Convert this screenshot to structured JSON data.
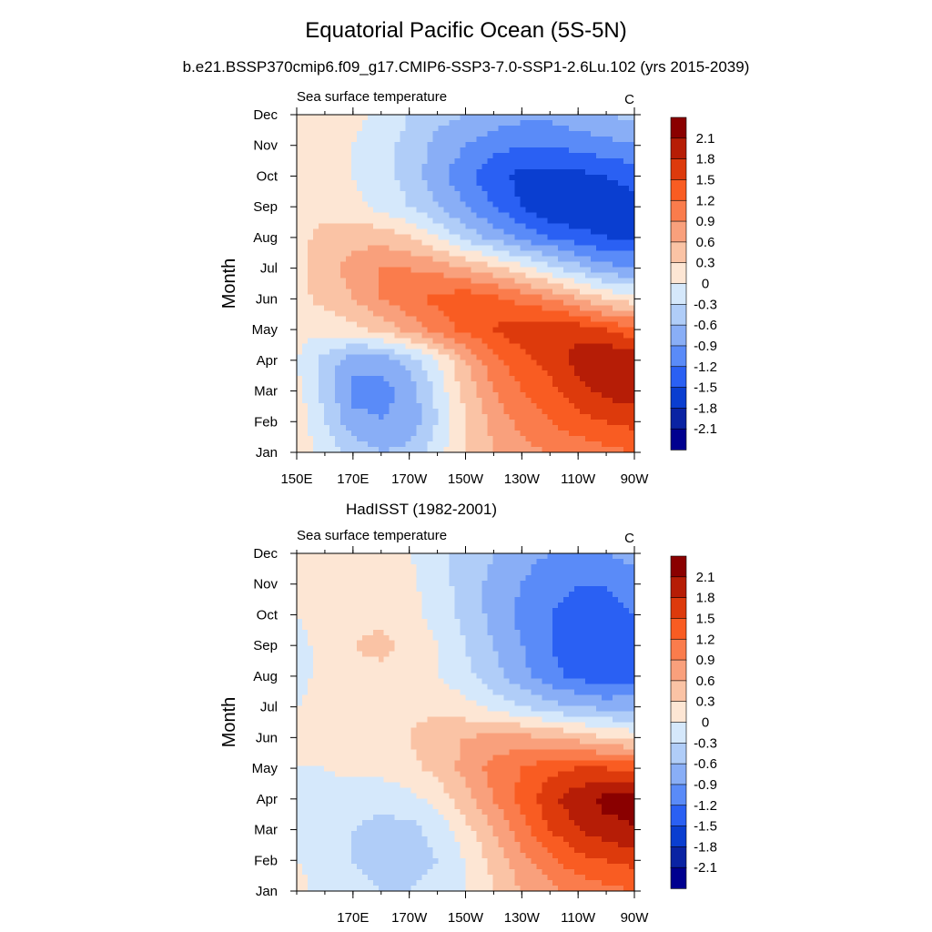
{
  "title": "Equatorial Pacific Ocean (5S-5N)",
  "subtitle": "b.e21.BSSP370cmip6.f09_g17.CMIP6-SSP3-7.0-SSP1-2.6Lu.102 (yrs 2015-2039)",
  "colorbar": {
    "labels": [
      "2.1",
      "1.8",
      "1.5",
      "1.2",
      "0.9",
      "0.6",
      "0.3",
      "0",
      "-0.3",
      "-0.6",
      "-0.9",
      "-1.2",
      "-1.5",
      "-1.8",
      "-2.1"
    ],
    "colors": [
      "#8a0000",
      "#b61d06",
      "#dd3a0c",
      "#f95c22",
      "#fa7c4c",
      "#f9a07c",
      "#fac3a5",
      "#fde6d4",
      "#d5e8fb",
      "#b0cdf8",
      "#89aef6",
      "#5a8bf8",
      "#2a60f3",
      "#0a3ed0",
      "#0a23a3",
      "#00008f"
    ]
  },
  "chart_data": [
    {
      "type": "heatmap",
      "panel_title": "",
      "left_label": "Sea surface temperature",
      "right_label": "C",
      "ylabel": "Month",
      "xlabel": "",
      "x_ticks": [
        "150E",
        "170E",
        "170W",
        "150W",
        "130W",
        "110W",
        "90W"
      ],
      "x_tick_lon": [
        150,
        170,
        190,
        210,
        230,
        250,
        270
      ],
      "y_ticks": [
        "Jan",
        "Feb",
        "Mar",
        "Apr",
        "May",
        "Jun",
        "Jul",
        "Aug",
        "Sep",
        "Oct",
        "Nov",
        "Dec"
      ],
      "xlim": [
        150,
        270
      ],
      "lon": [
        150,
        160,
        170,
        180,
        190,
        200,
        210,
        220,
        230,
        240,
        250,
        260,
        270
      ],
      "values": [
        [
          0.2,
          -0.1,
          -0.4,
          -0.6,
          -0.5,
          -0.1,
          0.3,
          0.6,
          0.8,
          0.9,
          1.0,
          1.1,
          1.2
        ],
        [
          0.2,
          -0.3,
          -0.8,
          -0.9,
          -0.8,
          -0.3,
          0.3,
          0.7,
          1.0,
          1.2,
          1.4,
          1.5,
          1.6
        ],
        [
          0.1,
          -0.4,
          -1.0,
          -1.0,
          -0.8,
          -0.2,
          0.4,
          0.9,
          1.2,
          1.4,
          1.7,
          1.9,
          2.0
        ],
        [
          0.0,
          -0.4,
          -0.8,
          -0.8,
          -0.5,
          0.0,
          0.6,
          1.1,
          1.4,
          1.6,
          1.9,
          2.1,
          2.1
        ],
        [
          0.1,
          0.1,
          0.2,
          0.4,
          0.7,
          1.0,
          1.3,
          1.5,
          1.7,
          1.8,
          1.7,
          1.5,
          1.3
        ],
        [
          0.2,
          0.4,
          0.6,
          0.9,
          1.1,
          1.3,
          1.4,
          1.3,
          1.1,
          0.9,
          0.6,
          0.3,
          0.1
        ],
        [
          0.2,
          0.5,
          0.7,
          0.9,
          0.9,
          0.8,
          0.6,
          0.4,
          0.1,
          -0.2,
          -0.5,
          -0.8,
          -0.9
        ],
        [
          0.2,
          0.4,
          0.5,
          0.5,
          0.3,
          0.0,
          -0.4,
          -0.7,
          -1.0,
          -1.2,
          -1.4,
          -1.5,
          -1.5
        ],
        [
          0.1,
          0.2,
          0.1,
          -0.1,
          -0.3,
          -0.6,
          -0.9,
          -1.2,
          -1.5,
          -1.8,
          -1.8,
          -1.7,
          -1.6
        ],
        [
          0.1,
          0.2,
          0.0,
          -0.2,
          -0.4,
          -0.8,
          -1.1,
          -1.4,
          -1.6,
          -1.6,
          -1.6,
          -1.5,
          -1.4
        ],
        [
          0.2,
          0.2,
          0.0,
          -0.2,
          -0.4,
          -0.7,
          -0.9,
          -1.1,
          -1.2,
          -1.2,
          -1.1,
          -1.0,
          -0.9
        ],
        [
          0.2,
          0.2,
          0.1,
          -0.1,
          -0.3,
          -0.5,
          -0.6,
          -0.7,
          -0.8,
          -0.8,
          -0.7,
          -0.6,
          -0.5
        ]
      ]
    },
    {
      "type": "heatmap",
      "panel_title": "HadISST (1982-2001)",
      "left_label": "Sea surface temperature",
      "right_label": "C",
      "ylabel": "Month",
      "xlabel": "",
      "x_ticks": [
        "170E",
        "170W",
        "150W",
        "130W",
        "110W",
        "90W"
      ],
      "x_tick_lon": [
        170,
        190,
        210,
        230,
        250,
        270
      ],
      "y_ticks": [
        "Jan",
        "Feb",
        "Mar",
        "Apr",
        "May",
        "Jun",
        "Jul",
        "Aug",
        "Sep",
        "Oct",
        "Nov",
        "Dec"
      ],
      "xlim": [
        150,
        270
      ],
      "lon": [
        150,
        160,
        170,
        180,
        190,
        200,
        210,
        220,
        230,
        240,
        250,
        260,
        270
      ],
      "values": [
        [
          0.1,
          -0.1,
          -0.2,
          -0.3,
          -0.3,
          -0.2,
          0.0,
          0.3,
          0.6,
          0.8,
          1.0,
          1.1,
          1.2
        ],
        [
          0.0,
          -0.1,
          -0.3,
          -0.4,
          -0.4,
          -0.3,
          0.0,
          0.4,
          0.8,
          1.1,
          1.4,
          1.5,
          1.6
        ],
        [
          0.0,
          -0.1,
          -0.3,
          -0.4,
          -0.4,
          -0.2,
          0.2,
          0.6,
          1.1,
          1.5,
          1.8,
          2.0,
          2.1
        ],
        [
          0.0,
          -0.1,
          -0.2,
          -0.2,
          -0.1,
          0.1,
          0.5,
          0.9,
          1.3,
          1.7,
          2.0,
          2.2,
          2.2
        ],
        [
          0.0,
          0.0,
          0.1,
          0.1,
          0.2,
          0.4,
          0.7,
          1.0,
          1.2,
          1.4,
          1.5,
          1.5,
          1.4
        ],
        [
          0.0,
          0.1,
          0.1,
          0.2,
          0.3,
          0.5,
          0.6,
          0.7,
          0.7,
          0.6,
          0.5,
          0.3,
          0.2
        ],
        [
          0.0,
          0.1,
          0.1,
          0.2,
          0.2,
          0.2,
          0.1,
          -0.1,
          -0.3,
          -0.5,
          -0.6,
          -0.7,
          -0.7
        ],
        [
          -0.1,
          0.1,
          0.2,
          0.2,
          0.1,
          0.0,
          -0.2,
          -0.5,
          -0.8,
          -1.1,
          -1.3,
          -1.4,
          -1.3
        ],
        [
          -0.1,
          0.1,
          0.3,
          0.4,
          0.2,
          0.0,
          -0.3,
          -0.6,
          -0.9,
          -1.2,
          -1.4,
          -1.5,
          -1.4
        ],
        [
          0.0,
          0.1,
          0.2,
          0.2,
          0.1,
          -0.1,
          -0.4,
          -0.7,
          -1.0,
          -1.2,
          -1.3,
          -1.3,
          -1.2
        ],
        [
          0.1,
          0.1,
          0.2,
          0.2,
          0.1,
          -0.2,
          -0.4,
          -0.7,
          -0.9,
          -1.1,
          -1.2,
          -1.2,
          -1.0
        ],
        [
          0.1,
          0.1,
          0.2,
          0.2,
          0.0,
          -0.2,
          -0.4,
          -0.6,
          -0.8,
          -0.9,
          -0.9,
          -0.9,
          -0.8
        ]
      ]
    }
  ]
}
